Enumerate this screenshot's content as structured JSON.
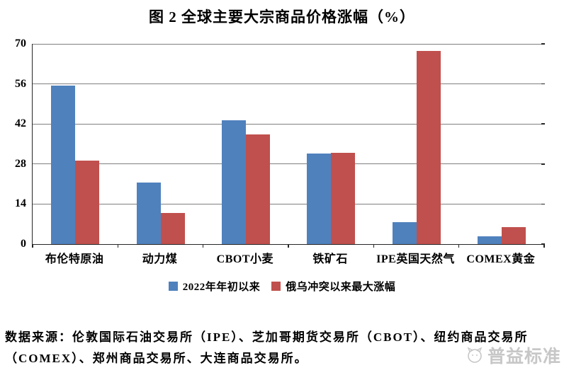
{
  "title": "图 2 全球主要大宗商品价格涨幅（%）",
  "chart_data": {
    "type": "bar",
    "title": "图 2 全球主要大宗商品价格涨幅（%）",
    "categories": [
      "布伦特原油",
      "动力煤",
      "CBOT小麦",
      "铁矿石",
      "IPE英国天然气",
      "COMEX黄金"
    ],
    "series": [
      {
        "name": "2022年年初以来",
        "color": "#4F81BD",
        "values": [
          55.3,
          21.5,
          43.3,
          31.6,
          7.7,
          2.7
        ]
      },
      {
        "name": "俄乌冲突以来最大涨幅",
        "color": "#C0504D",
        "values": [
          29.1,
          11.0,
          38.3,
          31.9,
          67.5,
          6.0
        ]
      }
    ],
    "xlabel": "",
    "ylabel": "",
    "ylim": [
      0,
      70
    ],
    "yticks": [
      0,
      14,
      28,
      42,
      56,
      70
    ],
    "grid": true,
    "legend_position": "bottom"
  },
  "footer": {
    "source_lines": [
      "数据来源：伦敦国际石油交易所（IPE）、芝加哥期货交易所（CBOT）、纽约商品交易所",
      "（COMEX）、郑州商品交易所、大连商品交易所。"
    ]
  },
  "watermark": {
    "text": "普益标准"
  },
  "colors": {
    "series1": "#4F81BD",
    "series2": "#C0504D",
    "gridline": "#7F7F7F",
    "axis": "#262626",
    "watermark": "#9A9A9A"
  }
}
